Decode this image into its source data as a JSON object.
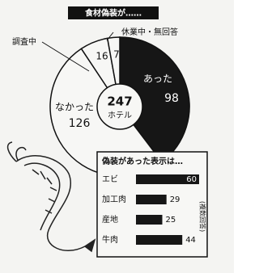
{
  "chart_data": [
    {
      "type": "pie",
      "title": "食材偽装が……",
      "categories": [
        "あった",
        "なかった",
        "調査中",
        "休業中・無回答"
      ],
      "values": [
        98,
        126,
        16,
        7
      ],
      "colors": [
        "#161616",
        "#f7f7f5",
        "#f7f7f5",
        "#f7f7f5"
      ],
      "total": 247,
      "total_unit": "ホテル"
    },
    {
      "type": "bar",
      "title": "偽装があった表示は…",
      "categories": [
        "エビ",
        "加工肉",
        "産地",
        "牛肉"
      ],
      "values": [
        60,
        29,
        25,
        44
      ],
      "color": "#161616",
      "note": "(複数回答)"
    }
  ]
}
